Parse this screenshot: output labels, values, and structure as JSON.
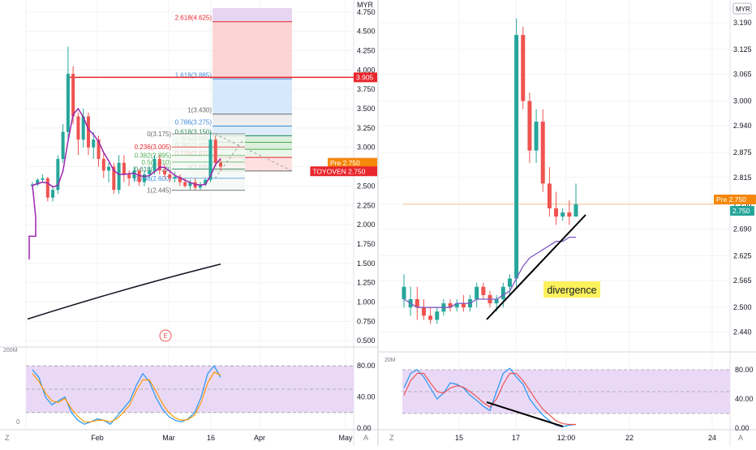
{
  "chart_data": [
    {
      "type": "candlestick",
      "title": "",
      "currency": "MYR",
      "y_ticks": [
        "4.750",
        "4.500",
        "4.250",
        "4.000",
        "3.750",
        "3.500",
        "3.250",
        "3.000",
        "2.750",
        "2.500",
        "2.250",
        "2.000",
        "1.750",
        "1.500",
        "1.250",
        "1.000",
        "0.750",
        "0.500"
      ],
      "ylim": [
        0.45,
        4.8
      ],
      "x_ticks": [
        "Feb",
        "Mar",
        "16",
        "Apr",
        "May"
      ],
      "price_labels": [
        {
          "text": "3.905",
          "value": 3.905,
          "color": "#e8262c"
        },
        {
          "text": "Pre  2.750",
          "value": 2.8,
          "color": "#f5870a"
        },
        {
          "text": "TOYOVEN  2.750",
          "value": 2.69,
          "color": "#e8262c"
        }
      ],
      "fib_upper": [
        {
          "text": "2.618(4.625)",
          "value": 4.625,
          "color": "#e8262c"
        },
        {
          "text": "1.618(3.885)",
          "value": 3.885,
          "color": "#3d8bd9"
        },
        {
          "text": "1(3.430)",
          "value": 3.43,
          "color": "#6a6a6a"
        },
        {
          "text": "0.786(3.275)",
          "value": 3.275,
          "color": "#3d8bd9"
        },
        {
          "text": "0.618(3.150)",
          "value": 3.15,
          "color": "#2a8a5b"
        },
        {
          "text": "0.5(3.065)",
          "value": 3.065,
          "color": "#4caf50"
        },
        {
          "text": "0.382(2.975)",
          "value": 2.975,
          "color": "#4caf50"
        },
        {
          "text": "0.236(2.870)",
          "value": 2.87,
          "color": "#e8262c"
        },
        {
          "text": "0(2.695)",
          "value": 2.695,
          "color": "#6a6a6a"
        }
      ],
      "fib_lower": [
        {
          "text": "0(3.175)",
          "value": 3.175,
          "color": "#6a6a6a"
        },
        {
          "text": "0.236(3.005)",
          "value": 3.005,
          "color": "#e8262c"
        },
        {
          "text": "0.382(2.895)",
          "value": 2.895,
          "color": "#4caf50"
        },
        {
          "text": "0.5(2.810)",
          "value": 2.81,
          "color": "#4caf50"
        },
        {
          "text": "0.618(2.720)",
          "value": 2.72,
          "color": "#2a8a5b"
        },
        {
          "text": "0.786(2.600)",
          "value": 2.6,
          "color": "#3d8bd9"
        },
        {
          "text": "1(2.445)",
          "value": 2.445,
          "color": "#6a6a6a"
        }
      ],
      "resistance_level": 3.905,
      "earnings_marker": "E",
      "candles": [
        [
          2.5,
          2.55,
          2.45,
          2.52
        ],
        [
          2.52,
          2.6,
          2.5,
          2.58
        ],
        [
          2.58,
          2.65,
          2.55,
          2.6
        ],
        [
          2.6,
          2.62,
          2.3,
          2.35
        ],
        [
          2.35,
          2.5,
          2.3,
          2.45
        ],
        [
          2.45,
          2.9,
          2.4,
          2.85
        ],
        [
          2.85,
          3.3,
          2.8,
          3.2
        ],
        [
          3.2,
          4.3,
          3.1,
          3.95
        ],
        [
          3.95,
          4.05,
          3.3,
          3.4
        ],
        [
          3.4,
          3.45,
          2.9,
          3.1
        ],
        [
          3.1,
          3.5,
          3.0,
          3.4
        ],
        [
          3.4,
          3.45,
          2.9,
          3.0
        ],
        [
          3.0,
          3.2,
          2.85,
          3.1
        ],
        [
          3.1,
          3.15,
          2.75,
          2.85
        ],
        [
          2.85,
          2.95,
          2.6,
          2.7
        ],
        [
          2.7,
          2.8,
          2.55,
          2.75
        ],
        [
          2.75,
          2.8,
          2.4,
          2.45
        ],
        [
          2.45,
          2.9,
          2.4,
          2.8
        ],
        [
          2.8,
          2.9,
          2.55,
          2.65
        ],
        [
          2.65,
          2.7,
          2.5,
          2.6
        ],
        [
          2.6,
          2.75,
          2.55,
          2.7
        ],
        [
          2.7,
          2.72,
          2.5,
          2.55
        ],
        [
          2.55,
          2.7,
          2.5,
          2.65
        ],
        [
          2.65,
          2.75,
          2.6,
          2.7
        ],
        [
          2.7,
          2.9,
          2.65,
          2.85
        ],
        [
          2.85,
          2.9,
          2.65,
          2.7
        ],
        [
          2.7,
          2.78,
          2.6,
          2.65
        ],
        [
          2.65,
          2.7,
          2.55,
          2.6
        ],
        [
          2.6,
          2.68,
          2.55,
          2.62
        ],
        [
          2.62,
          2.65,
          2.5,
          2.55
        ],
        [
          2.55,
          2.6,
          2.48,
          2.5
        ],
        [
          2.5,
          2.58,
          2.45,
          2.55
        ],
        [
          2.55,
          2.6,
          2.45,
          2.48
        ],
        [
          2.48,
          2.55,
          2.45,
          2.52
        ],
        [
          2.52,
          2.6,
          2.5,
          2.58
        ],
        [
          2.58,
          3.2,
          2.55,
          3.1
        ],
        [
          3.1,
          3.15,
          2.75,
          2.8
        ],
        [
          2.8,
          2.85,
          2.7,
          2.75
        ]
      ],
      "volume_label": "200M",
      "stoch_ticks": [
        "80.00",
        "40.00",
        "0.00"
      ],
      "stoch_side_labels": [
        "200M",
        "0"
      ],
      "stoch_k": [
        75,
        65,
        40,
        30,
        35,
        40,
        20,
        10,
        5,
        8,
        12,
        10,
        5,
        15,
        25,
        35,
        55,
        70,
        60,
        40,
        25,
        15,
        10,
        8,
        12,
        20,
        40,
        70,
        80,
        65
      ],
      "stoch_d": [
        70,
        60,
        45,
        35,
        33,
        38,
        25,
        15,
        8,
        8,
        10,
        10,
        8,
        12,
        20,
        30,
        48,
        62,
        62,
        48,
        32,
        20,
        13,
        10,
        11,
        17,
        33,
        58,
        72,
        68
      ]
    },
    {
      "type": "candlestick",
      "title": "",
      "currency": "MYR",
      "y_ticks": [
        "3.190",
        "3.125",
        "3.065",
        "3.000",
        "2.940",
        "2.875",
        "2.815",
        "2.750",
        "2.690",
        "2.625",
        "2.565",
        "2.500",
        "2.440"
      ],
      "ylim": [
        2.41,
        3.225
      ],
      "x_ticks": [
        "15",
        "17",
        "12:00",
        "22",
        "24"
      ],
      "price_labels": [
        {
          "text": "Pre  2.750",
          "value": 2.765,
          "color": "#f5870a"
        },
        {
          "text": "2.750",
          "value": 2.75,
          "color": "#26a69a"
        }
      ],
      "annotation": "divergence",
      "candles": [
        [
          2.52,
          2.58,
          2.5,
          2.55
        ],
        [
          2.5,
          2.55,
          2.48,
          2.52
        ],
        [
          2.52,
          2.55,
          2.47,
          2.5
        ],
        [
          2.5,
          2.52,
          2.47,
          2.48
        ],
        [
          2.48,
          2.5,
          2.46,
          2.47
        ],
        [
          2.47,
          2.5,
          2.46,
          2.49
        ],
        [
          2.49,
          2.52,
          2.48,
          2.51
        ],
        [
          2.51,
          2.52,
          2.49,
          2.5
        ],
        [
          2.5,
          2.52,
          2.49,
          2.51
        ],
        [
          2.51,
          2.53,
          2.49,
          2.5
        ],
        [
          2.5,
          2.53,
          2.49,
          2.52
        ],
        [
          2.52,
          2.56,
          2.5,
          2.55
        ],
        [
          2.55,
          2.56,
          2.52,
          2.53
        ],
        [
          2.53,
          2.54,
          2.5,
          2.51
        ],
        [
          2.51,
          2.53,
          2.49,
          2.52
        ],
        [
          2.52,
          2.56,
          2.5,
          2.55
        ],
        [
          2.55,
          2.58,
          2.53,
          2.57
        ],
        [
          2.57,
          3.2,
          2.55,
          3.16
        ],
        [
          3.16,
          3.18,
          2.98,
          3.0
        ],
        [
          3.0,
          3.02,
          2.85,
          2.88
        ],
        [
          2.88,
          2.98,
          2.85,
          2.95
        ],
        [
          2.95,
          2.98,
          2.78,
          2.8
        ],
        [
          2.8,
          2.84,
          2.72,
          2.74
        ],
        [
          2.74,
          2.78,
          2.7,
          2.72
        ],
        [
          2.72,
          2.74,
          2.71,
          2.73
        ],
        [
          2.73,
          2.76,
          2.7,
          2.72
        ],
        [
          2.72,
          2.8,
          2.72,
          2.75
        ]
      ],
      "ma_line": [
        2.52,
        2.51,
        2.5,
        2.5,
        2.5,
        2.5,
        2.5,
        2.5,
        2.51,
        2.51,
        2.51,
        2.52,
        2.52,
        2.52,
        2.52,
        2.53,
        2.54,
        2.57,
        2.6,
        2.62,
        2.63,
        2.64,
        2.65,
        2.66,
        2.66,
        2.67,
        2.67
      ],
      "volume_label": "20M",
      "stoch_ticks": [
        "80.00",
        "40.00",
        "0.00"
      ],
      "stoch_k": [
        55,
        75,
        80,
        70,
        55,
        40,
        48,
        62,
        60,
        55,
        45,
        38,
        30,
        24,
        50,
        75,
        82,
        70,
        60,
        40,
        28,
        18,
        10,
        4,
        2,
        4,
        5
      ],
      "stoch_d": [
        45,
        65,
        75,
        75,
        62,
        50,
        48,
        55,
        58,
        56,
        50,
        43,
        35,
        29,
        40,
        60,
        75,
        75,
        65,
        52,
        38,
        26,
        18,
        10,
        6,
        5,
        5
      ]
    }
  ]
}
